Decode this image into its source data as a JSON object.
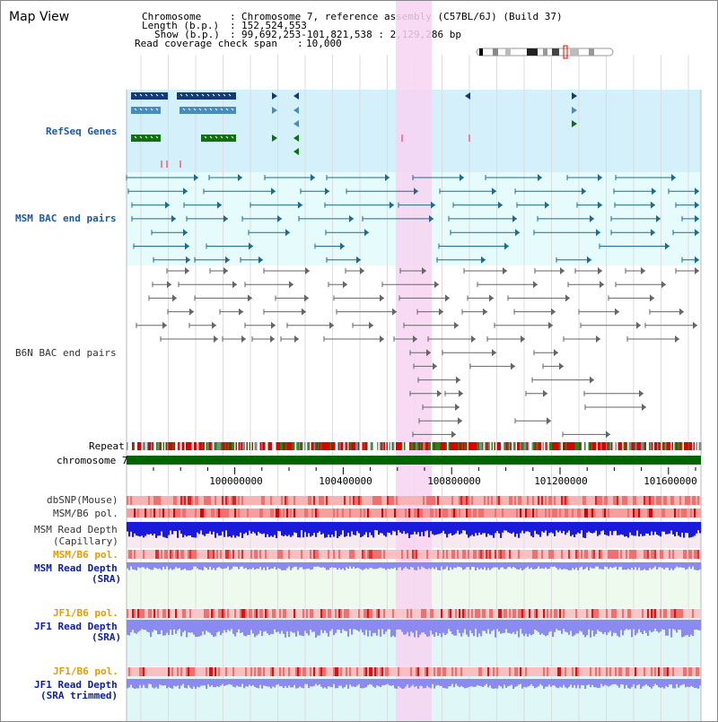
{
  "app": {
    "title": "Map View"
  },
  "info": {
    "chromosome_key": "Chromosome",
    "chromosome_val": "Chromosome 7, reference assembly (C57BL/6J) (Build 37)",
    "length_key": "Length (b.p.)",
    "length_val": "152,524,553",
    "show_key": "Show (b.p.)",
    "show_val": "99,692,253-101,821,538 : 2,129,286 bp",
    "span_key": "Read coverage check span",
    "span_val": "10,000"
  },
  "labels": {
    "refseq": "RefSeq Genes",
    "msm_bac": "MSM BAC end pairs",
    "b6n_bac": "B6N BAC end pairs",
    "repeat": "Repeat",
    "chrom": "chromosome 7",
    "dbsnp": "dbSNP(Mouse)",
    "msm_b6_pol_1": "MSM/B6 pol.",
    "msm_depth_cap_1": "MSM Read Depth",
    "msm_depth_cap_2": "(Capillary)",
    "msm_b6_pol_2": "MSM/B6 pol.",
    "msm_depth_sra_1": "MSM Read Depth",
    "msm_depth_sra_2": "(SRA)",
    "jf1_b6_pol_1": "JF1/B6 pol.",
    "jf1_depth_sra_1": "JF1 Read Depth",
    "jf1_depth_sra_2": "(SRA)",
    "jf1_b6_pol_2": "JF1/B6 pol.",
    "jf1_depth_trim_1": "JF1 Read Depth",
    "jf1_depth_trim_2": "(SRA trimmed)"
  },
  "axis": {
    "ticks": [
      "100000000",
      "100400000",
      "100800000",
      "101200000",
      "101600000"
    ]
  },
  "colors": {
    "refseq_bg": "#d4f0fa",
    "bac_bg": "#e6fcfc",
    "highlight": "#f7d4f2",
    "chrom_bar": "#006400",
    "msm_depth": "#1a1adc",
    "sra_depth": "#8a8af0"
  }
}
